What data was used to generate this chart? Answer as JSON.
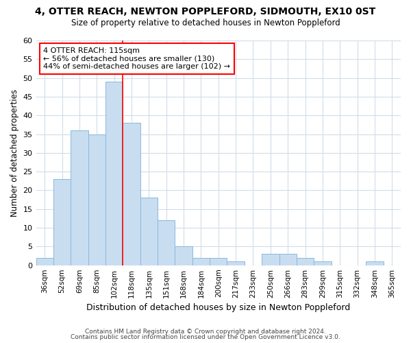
{
  "title1": "4, OTTER REACH, NEWTON POPPLEFORD, SIDMOUTH, EX10 0ST",
  "title2": "Size of property relative to detached houses in Newton Poppleford",
  "xlabel": "Distribution of detached houses by size in Newton Poppleford",
  "ylabel": "Number of detached properties",
  "footer1": "Contains HM Land Registry data © Crown copyright and database right 2024.",
  "footer2": "Contains public sector information licensed under the Open Government Licence v3.0.",
  "categories": [
    "36sqm",
    "52sqm",
    "69sqm",
    "85sqm",
    "102sqm",
    "118sqm",
    "135sqm",
    "151sqm",
    "168sqm",
    "184sqm",
    "200sqm",
    "217sqm",
    "233sqm",
    "250sqm",
    "266sqm",
    "283sqm",
    "299sqm",
    "315sqm",
    "332sqm",
    "348sqm",
    "365sqm"
  ],
  "values": [
    2,
    23,
    36,
    35,
    49,
    38,
    18,
    12,
    5,
    2,
    2,
    1,
    0,
    3,
    3,
    2,
    1,
    0,
    0,
    1,
    0
  ],
  "bar_color": "#c9ddf0",
  "bar_edge_color": "#89b8de",
  "vline_x": 4.5,
  "annotation_title": "4 OTTER REACH: 115sqm",
  "annotation_line1": "← 56% of detached houses are smaller (130)",
  "annotation_line2": "44% of semi-detached houses are larger (102) →",
  "ylim": [
    0,
    60
  ],
  "yticks": [
    0,
    5,
    10,
    15,
    20,
    25,
    30,
    35,
    40,
    45,
    50,
    55,
    60
  ],
  "background_color": "#ffffff",
  "axes_background": "#ffffff",
  "grid_color": "#d0dce8"
}
